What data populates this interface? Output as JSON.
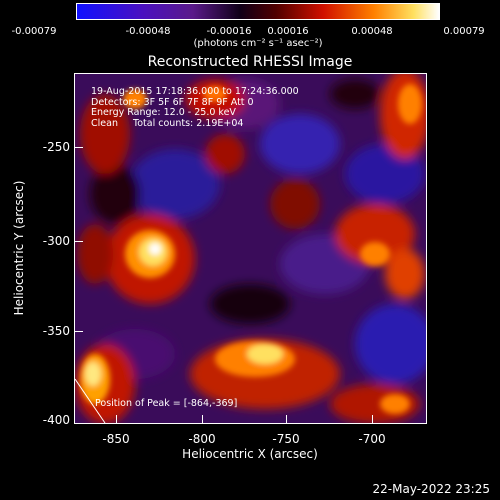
{
  "colorbar": {
    "tick_labels": [
      "-0.00079",
      "-0.00048",
      "-0.00016",
      "0.00016",
      "0.00048",
      "0.00079"
    ],
    "unit": "(photons cm⁻² s⁻¹ asec⁻²)"
  },
  "title": "Reconstructed RHESSI Image",
  "annotation": {
    "time": "19-Aug-2015 17:18:36.000 to 17:24:36.000",
    "detectors": "Detectors: 3F 5F 6F 7F 8F 9F Att 0",
    "energy": "Energy Range: 12.0 - 25.0 keV",
    "method": "Clean     Total counts: 2.19E+04"
  },
  "peak": "Position of Peak = [-864,-369]",
  "axes": {
    "x_label": "Heliocentric X (arcsec)",
    "y_label": "Heliocentric Y (arcsec)",
    "x_ticks": [
      "-850",
      "-800",
      "-750",
      "-700"
    ],
    "y_ticks": [
      "-250",
      "-300",
      "-350",
      "-400"
    ]
  },
  "footer_date": "22-May-2022 23:25"
}
